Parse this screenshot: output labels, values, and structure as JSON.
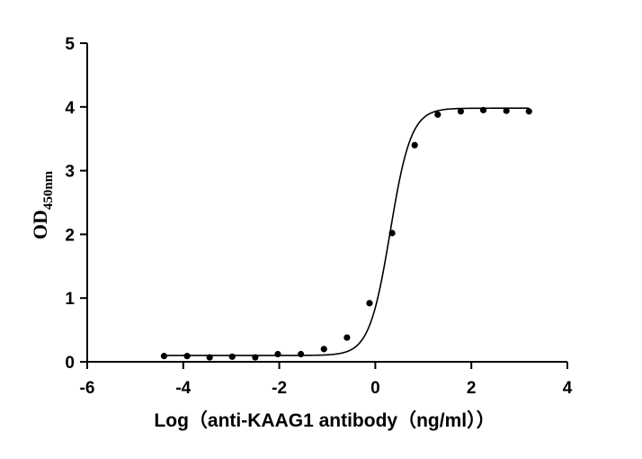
{
  "chart_data": {
    "type": "scatter",
    "xlabel": "Log（anti-KAAG1 antibody（ng/ml））",
    "ylabel": "OD",
    "ylabel_subscript": "450nm",
    "xlim": [
      -6,
      4
    ],
    "ylim": [
      0,
      5
    ],
    "x_ticks": [
      -6,
      -4,
      -2,
      0,
      2,
      4
    ],
    "y_ticks": [
      0,
      1,
      2,
      3,
      4,
      5
    ],
    "grid": false,
    "points": [
      {
        "x": -4.4,
        "y": 0.09
      },
      {
        "x": -3.92,
        "y": 0.09
      },
      {
        "x": -3.45,
        "y": 0.07
      },
      {
        "x": -2.98,
        "y": 0.08
      },
      {
        "x": -2.5,
        "y": 0.07
      },
      {
        "x": -2.03,
        "y": 0.12
      },
      {
        "x": -1.55,
        "y": 0.12
      },
      {
        "x": -1.07,
        "y": 0.2
      },
      {
        "x": -0.59,
        "y": 0.38
      },
      {
        "x": -0.12,
        "y": 0.92
      },
      {
        "x": 0.35,
        "y": 2.02
      },
      {
        "x": 0.82,
        "y": 3.4
      },
      {
        "x": 1.3,
        "y": 3.88
      },
      {
        "x": 1.78,
        "y": 3.93
      },
      {
        "x": 2.25,
        "y": 3.95
      },
      {
        "x": 2.73,
        "y": 3.94
      },
      {
        "x": 3.2,
        "y": 3.93
      }
    ],
    "fit_curve": {
      "type": "4PL",
      "bottom": 0.1,
      "top": 3.98,
      "log_ec50": 0.31,
      "hill_slope": 2.0,
      "x_range": [
        -4.4,
        3.2
      ]
    }
  }
}
